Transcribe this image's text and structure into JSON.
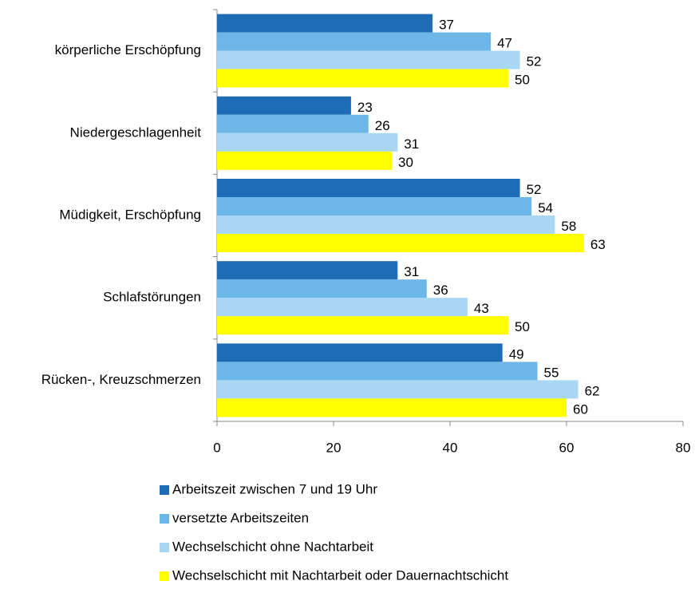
{
  "chart_data": {
    "type": "hbar",
    "categories": [
      "körperliche Erschöpfung",
      "Niedergeschlagenheit",
      "Müdigkeit, Erschöpfung",
      "Schlafstörungen",
      "Rücken-, Kreuzschmerzen"
    ],
    "series": [
      {
        "name": "Arbeitszeit zwischen 7 und 19 Uhr",
        "color": "#1f6cb6",
        "values": [
          37,
          23,
          52,
          31,
          49
        ]
      },
      {
        "name": "versetzte Arbeitszeiten",
        "color": "#6db6e8",
        "values": [
          47,
          26,
          54,
          36,
          55
        ]
      },
      {
        "name": "Wechselschicht ohne Nachtarbeit",
        "color": "#a9d6f3",
        "values": [
          52,
          31,
          58,
          43,
          62
        ]
      },
      {
        "name": "Wechselschicht mit Nachtarbeit oder Dauernachtschicht",
        "color": "#ffff00",
        "values": [
          50,
          30,
          63,
          50,
          60
        ]
      }
    ],
    "xlim": [
      0,
      80
    ],
    "xticks": [
      0,
      20,
      40,
      60,
      80
    ],
    "grid": false,
    "legend": "bottom"
  }
}
